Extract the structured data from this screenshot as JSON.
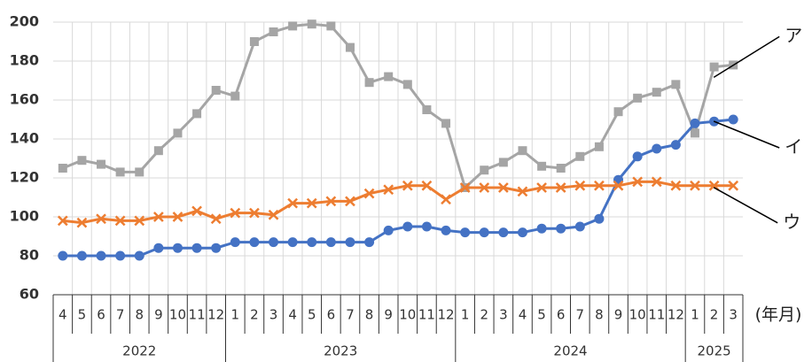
{
  "chart_data": {
    "type": "line",
    "x_label": "(年月)",
    "categories": [
      "4",
      "5",
      "6",
      "7",
      "8",
      "9",
      "10",
      "11",
      "12",
      "1",
      "2",
      "3",
      "4",
      "5",
      "6",
      "7",
      "8",
      "9",
      "10",
      "11",
      "12",
      "1",
      "2",
      "3",
      "4",
      "5",
      "6",
      "7",
      "8",
      "9",
      "10",
      "11",
      "12",
      "1",
      "2",
      "3"
    ],
    "years": [
      "2022",
      "2023",
      "2024",
      "2025"
    ],
    "ylim": [
      60,
      200
    ],
    "yticks": [
      60,
      80,
      100,
      120,
      140,
      160,
      180,
      200
    ],
    "grid": true,
    "series": [
      {
        "name": "ア",
        "color": "#a5a5a5",
        "marker": "square",
        "values": [
          125,
          129,
          127,
          123,
          123,
          134,
          143,
          153,
          165,
          162,
          190,
          195,
          198,
          199,
          198,
          187,
          169,
          172,
          168,
          155,
          148,
          115,
          124,
          128,
          134,
          126,
          125,
          131,
          136,
          154,
          161,
          164,
          168,
          143,
          177,
          178
        ]
      },
      {
        "name": "イ",
        "color": "#4472c4",
        "marker": "circle",
        "values": [
          80,
          80,
          80,
          80,
          80,
          84,
          84,
          84,
          84,
          87,
          87,
          87,
          87,
          87,
          87,
          87,
          87,
          93,
          95,
          95,
          93,
          92,
          92,
          92,
          92,
          94,
          94,
          95,
          99,
          119,
          131,
          135,
          137,
          148,
          149,
          150
        ]
      },
      {
        "name": "ウ",
        "color": "#ed7d31",
        "marker": "x",
        "values": [
          98,
          97,
          99,
          98,
          98,
          100,
          100,
          103,
          99,
          102,
          102,
          101,
          107,
          107,
          108,
          108,
          112,
          114,
          116,
          116,
          109,
          115,
          115,
          115,
          113,
          115,
          115,
          116,
          116,
          116,
          118,
          118,
          116,
          116,
          116,
          116
        ]
      }
    ]
  }
}
